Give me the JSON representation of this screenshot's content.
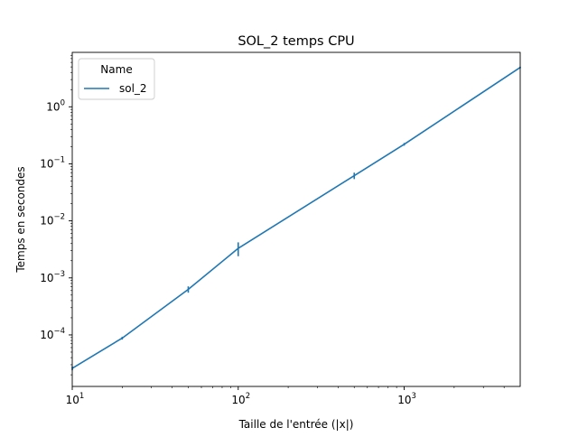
{
  "chart_data": {
    "type": "line",
    "title": "SOL_2 temps CPU",
    "xlabel": "Taille de l'entrée (|x|)",
    "ylabel": "Temps en secondes",
    "xscale": "log",
    "yscale": "log",
    "xlim": [
      10,
      5000
    ],
    "ylim": [
      1.25e-05,
      9
    ],
    "grid": false,
    "x_ticks": [
      {
        "value": 10,
        "base": "10",
        "exp": "1"
      },
      {
        "value": 100,
        "base": "10",
        "exp": "2"
      },
      {
        "value": 1000,
        "base": "10",
        "exp": "3"
      }
    ],
    "y_ticks": [
      {
        "value": 0.0001,
        "base": "10",
        "exp": "−4"
      },
      {
        "value": 0.001,
        "base": "10",
        "exp": "−3"
      },
      {
        "value": 0.01,
        "base": "10",
        "exp": "−2"
      },
      {
        "value": 0.1,
        "base": "10",
        "exp": "−1"
      },
      {
        "value": 1,
        "base": "10",
        "exp": "0"
      }
    ],
    "legend": {
      "title": "Name",
      "placement": "top-left"
    },
    "series": [
      {
        "name": "sol_2",
        "color": "#1f77b4",
        "points": [
          {
            "x": 10,
            "y": 2.6e-05,
            "err": 2e-06
          },
          {
            "x": 20,
            "y": 8.8e-05,
            "err": 5e-06
          },
          {
            "x": 50,
            "y": 0.00063,
            "err": 8e-05
          },
          {
            "x": 100,
            "y": 0.0033,
            "err": 0.0009
          },
          {
            "x": 500,
            "y": 0.062,
            "err": 0.008
          },
          {
            "x": 1000,
            "y": 0.22,
            "err": 0.012
          },
          {
            "x": 5000,
            "y": 4.9,
            "err": 0.15
          }
        ]
      }
    ]
  }
}
